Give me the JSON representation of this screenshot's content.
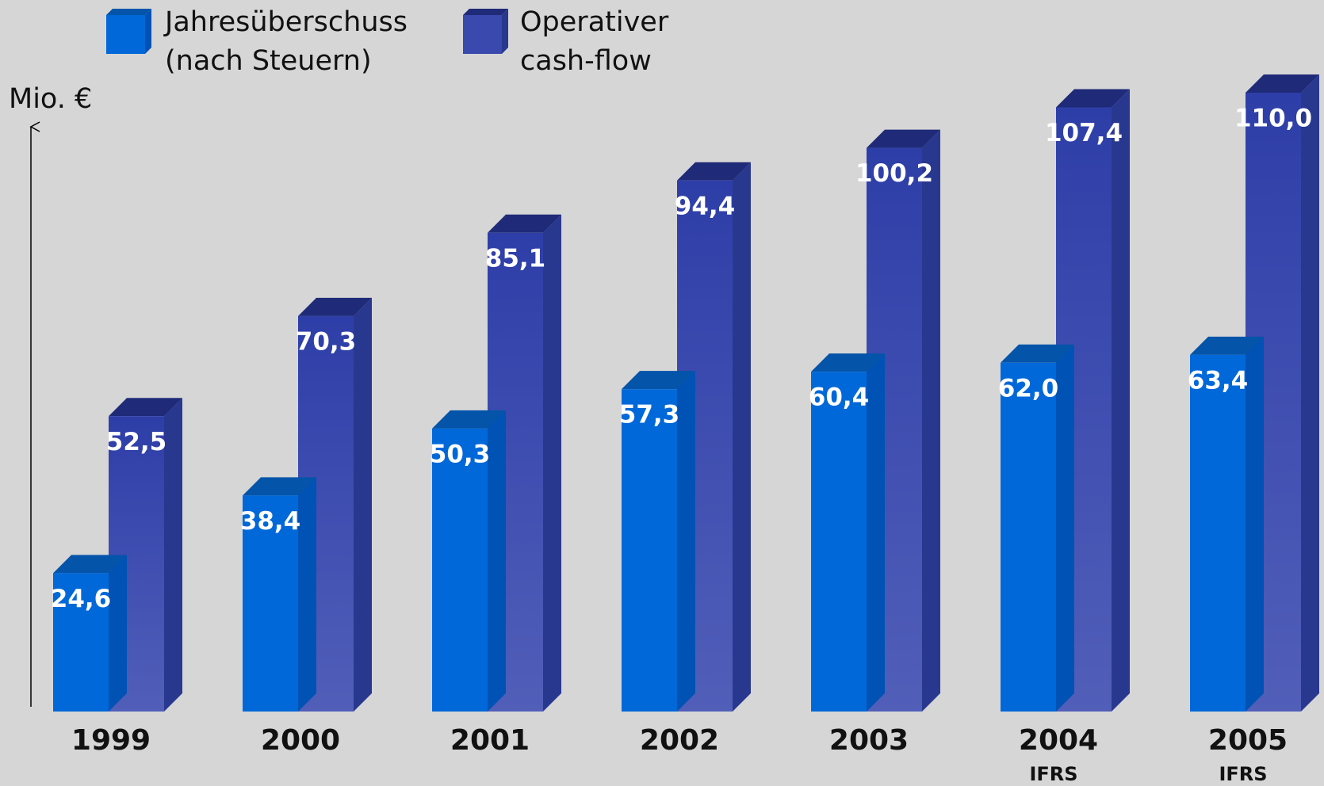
{
  "chart_data": {
    "type": "bar3d",
    "y_axis_label": "Mio.  €",
    "categories": [
      "1999",
      "2000",
      "2001",
      "2002",
      "2003",
      "2004",
      "2005"
    ],
    "series": [
      {
        "name": "Jahresüberschuss (nach Steuern)",
        "color": "#0068d8",
        "values": [
          24.6,
          38.4,
          50.3,
          57.3,
          60.4,
          62.0,
          63.4
        ],
        "value_labels": [
          "24,6",
          "38,4",
          "50,3",
          "57,3",
          "60,4",
          "62,0",
          "63,4"
        ]
      },
      {
        "name": "Operativer cash-flow",
        "color": "#3443a8",
        "values": [
          52.5,
          70.3,
          85.1,
          94.4,
          100.2,
          107.4,
          110.0
        ],
        "value_labels": [
          "52,5",
          "70,3",
          "85,1",
          "94,4",
          "100,2",
          "107,4",
          "110,0"
        ]
      }
    ],
    "annotations": [
      {
        "text": "IFRS",
        "x": "2004"
      },
      {
        "text": "IFRS",
        "x": "2005"
      }
    ],
    "ylim": [
      0,
      110
    ]
  }
}
